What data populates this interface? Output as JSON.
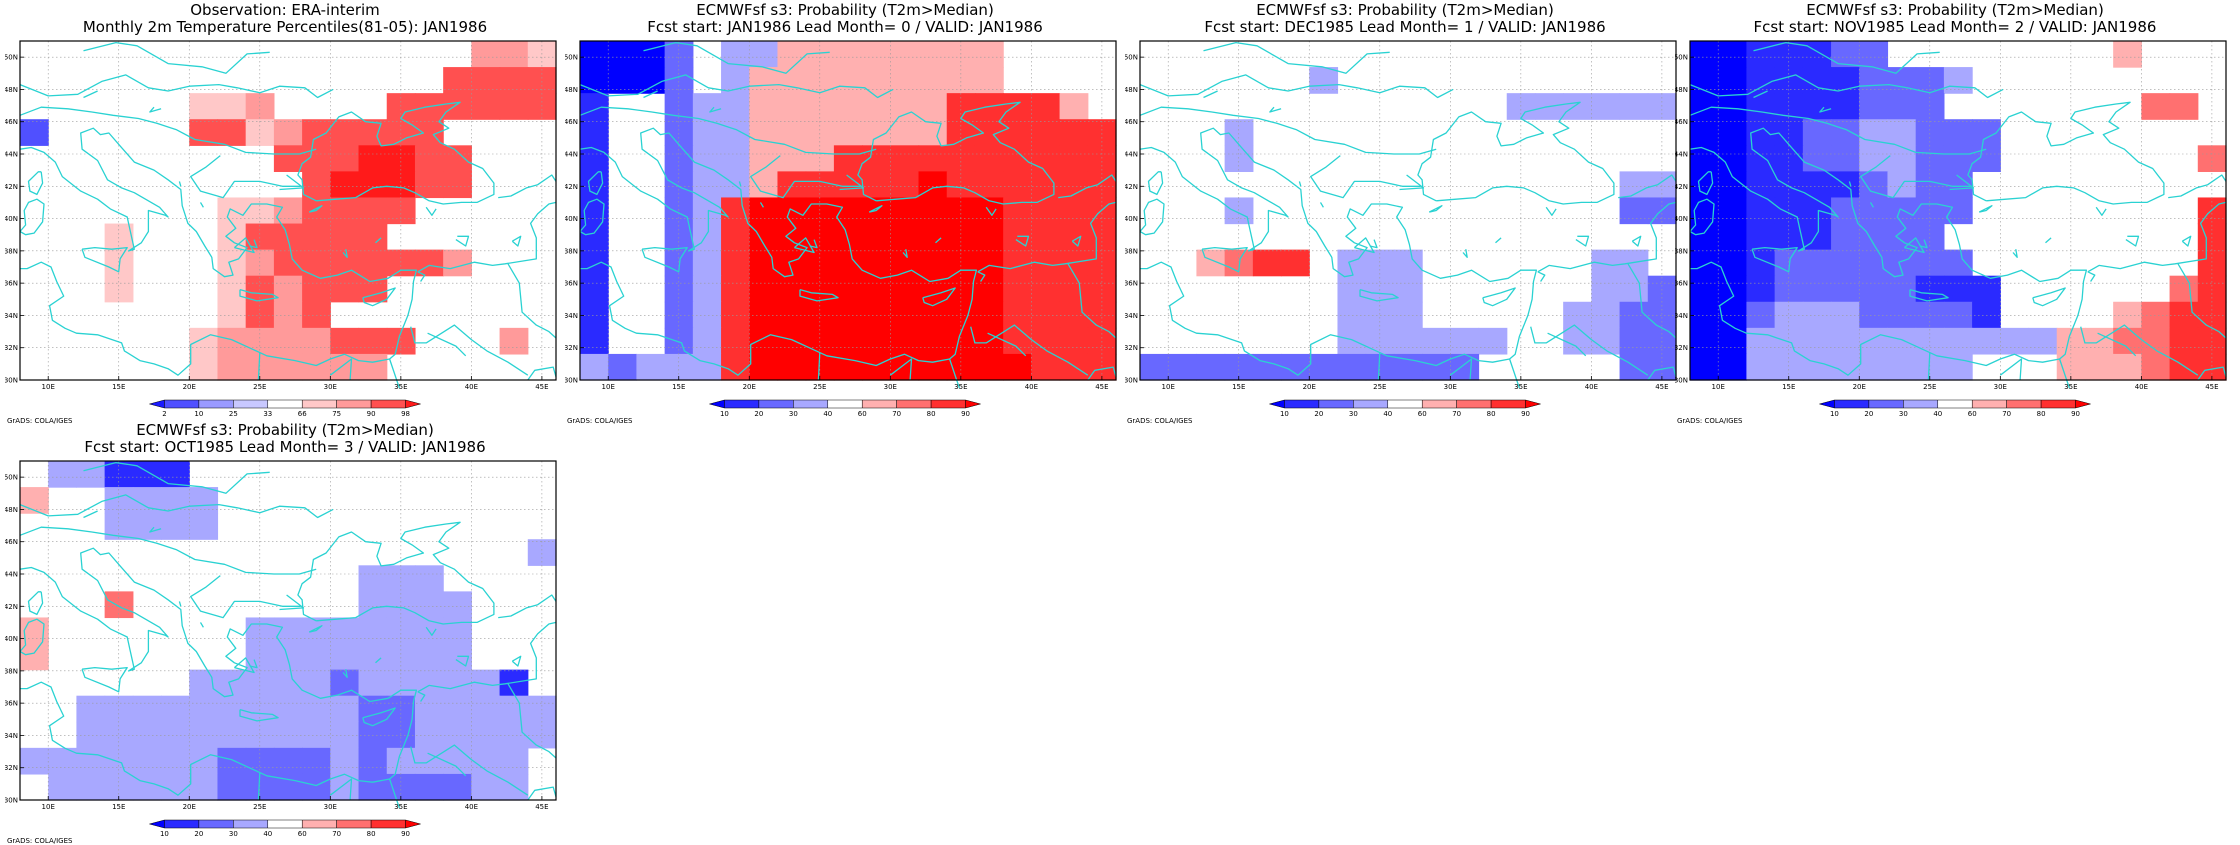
{
  "palettes": {
    "obs": [
      "#1a1aff",
      "#5050ff",
      "#9a9aff",
      "#c8c8ff",
      "#ffffff",
      "#ffc8c8",
      "#ff9a9a",
      "#ff5050",
      "#ff1a1a"
    ],
    "prob": [
      "#0000ff",
      "#2a2aff",
      "#6868ff",
      "#a8a8ff",
      "#ffffff",
      "#ffb0b0",
      "#ff7070",
      "#ff3030",
      "#ff0000"
    ],
    "coast": "#2ad2d2",
    "grid": "#9a9a9a"
  },
  "axes": {
    "lon_ticks": [
      "10E",
      "15E",
      "20E",
      "25E",
      "30E",
      "35E",
      "40E",
      "45E"
    ],
    "lat_ticks": [
      "30N",
      "32N",
      "34N",
      "36N",
      "38N",
      "40N",
      "42N",
      "44N",
      "46N",
      "48N",
      "50N"
    ]
  },
  "panels": [
    {
      "id": "obs",
      "title1": "Observation: ERA-interim",
      "title2": "Monthly 2m Temperature Percentiles(81-05): JAN1986",
      "credit": "GrADS: COLA/IGES",
      "cb_labels": [
        "2",
        "10",
        "25",
        "33",
        "66",
        "75",
        "90",
        "98"
      ],
      "palette": "obs",
      "grid": [
        "4444444444444444665",
        "4444444444444447777",
        "4444445564444777777",
        "1444447756777774444",
        "4444444447778877444",
        "4444444444788877444",
        "4444444556777744444",
        "4445444577777444444",
        "4445444567777776444",
        "4445444576777444444",
        "4444444576744444444",
        "4444445666677744464",
        "4444445666666444444"
      ]
    },
    {
      "id": "lead0",
      "title1": "ECMWFsf s3: Probability (T2m>Median)",
      "title2": "Fcst start: JAN1986  Lead Month= 0 / VALID: JAN1986",
      "credit": "GrADS: COLA/IGES",
      "cb_labels": [
        "10",
        "20",
        "30",
        "40",
        "60",
        "70",
        "80",
        "90"
      ],
      "palette": "prob",
      "grid": [
        "0002433555555554444",
        "0002435555555554444",
        "1442335555555777754",
        "1442335555555777777",
        "1442335557777777777",
        "1442335777778777777",
        "1442378888888887777",
        "1442378888888887777",
        "1442378888888887777",
        "1442378888888887777",
        "1442378888888887777",
        "1442378888888887777",
        "3233378888888888777"
      ]
    },
    {
      "id": "lead1",
      "title1": "ECMWFsf s3: Probability (T2m>Median)",
      "title2": "Fcst start: DEC1985  Lead Month= 1 / VALID: JAN1986",
      "credit": "GrADS: COLA/IGES",
      "cb_labels": [
        "10",
        "20",
        "30",
        "40",
        "60",
        "70",
        "80",
        "90"
      ],
      "palette": "prob",
      "grid": [
        "4444444444444444444",
        "4444443444444444444",
        "4444444444444333333",
        "4443444444444444444",
        "4443444444444444444",
        "4444444444444444433",
        "4443444444444444422",
        "4444444444444444444",
        "4456774333444444334",
        "4444444333444444332",
        "4444444333444443322",
        "4444444333333443322",
        "2222222222224444422"
      ]
    },
    {
      "id": "lead2",
      "title1": "ECMWFsf s3: Probability (T2m>Median)",
      "title2": "Fcst start: NOV1985  Lead Month= 2 / VALID: JAN1986",
      "credit": "GrADS: COLA/IGES",
      "cb_labels": [
        "10",
        "20",
        "30",
        "40",
        "60",
        "70",
        "80",
        "90"
      ],
      "palette": "prob",
      "grid": [
        "0011122444444445444",
        "0011112223444444444",
        "0011112224444444664",
        "0011223322244444444",
        "0011223322244444446",
        "0011112322444444444",
        "0011122222444444447",
        "0011122224444444447",
        "0012222222444444447",
        "0012222211144444467",
        "0023332222144445677",
        "0033333333333556677",
        "0033333333444555677"
      ]
    },
    {
      "id": "lead3",
      "title1": "ECMWFsf s3: Probability (T2m>Median)",
      "title2": "Fcst start: OCT1985  Lead Month= 3 / VALID: JAN1986",
      "credit": "GrADS: COLA/IGES",
      "cb_labels": [
        "10",
        "20",
        "30",
        "40",
        "60",
        "70",
        "80",
        "90"
      ],
      "palette": "prob",
      "grid": [
        "4331114444444444444",
        "5443333444444444444",
        "4443333444444444444",
        "4444444444444444443",
        "4444444444443334444",
        "4446444444443333444",
        "5444444433333333444",
        "5444444433333333444",
        "4444443333323333314",
        "4433333333332233333",
        "4433333333332233333",
        "3333333222232333334",
        "4333333222232222334"
      ]
    }
  ]
}
